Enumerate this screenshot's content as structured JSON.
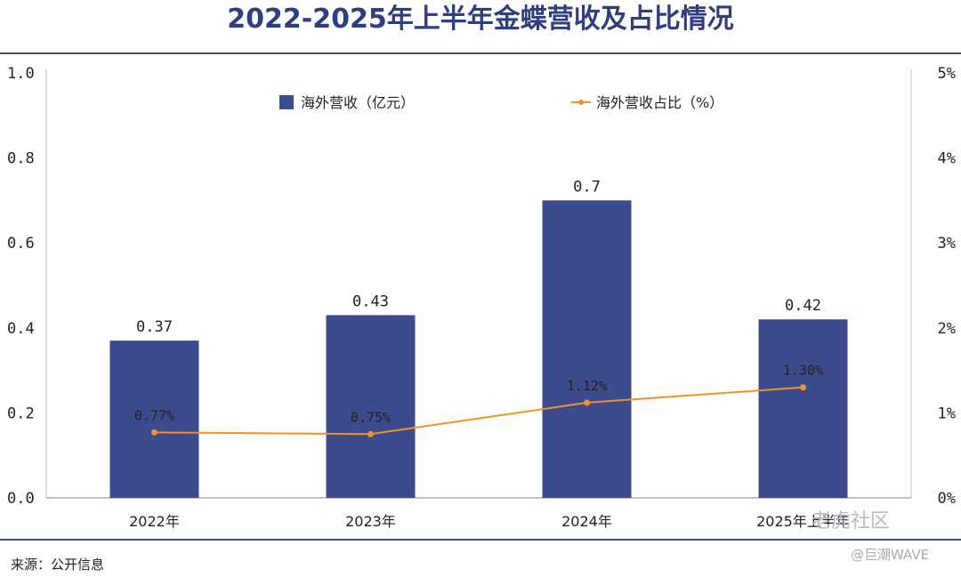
{
  "title": "2022-2025年上半年金蝶营收及占比情况",
  "source": "来源：公开信息",
  "watermark": {
    "line1": "老虎社区",
    "line2": "@巨潮WAVE"
  },
  "colors": {
    "bar": "#3b4b8c",
    "line": "#f0922b",
    "rule": "#3a4a8c",
    "title": "#2f3e7d"
  },
  "chart_data": {
    "type": "bar",
    "categories": [
      "2022年",
      "2023年",
      "2024年",
      "2025年上半年"
    ],
    "series": [
      {
        "name": "海外营收（亿元）",
        "type": "bar",
        "axis": "left",
        "values": [
          0.37,
          0.43,
          0.7,
          0.42
        ],
        "labels": [
          "0.37",
          "0.43",
          "0.7",
          "0.42"
        ]
      },
      {
        "name": "海外营收占比（%）",
        "type": "line",
        "axis": "right",
        "values": [
          0.77,
          0.75,
          1.12,
          1.3
        ],
        "labels": [
          "0.77%",
          "0.75%",
          "1.12%",
          "1.30%"
        ]
      }
    ],
    "y_left": {
      "ylim": [
        0,
        1.0
      ],
      "ticks": [
        "0.0",
        "0.2",
        "0.4",
        "0.6",
        "0.8",
        "1.0"
      ]
    },
    "y_right": {
      "ylim": [
        0,
        5
      ],
      "ticks": [
        "0%",
        "1%",
        "2%",
        "3%",
        "4%",
        "5%"
      ]
    },
    "legend_position": "top-center",
    "grid": false
  }
}
